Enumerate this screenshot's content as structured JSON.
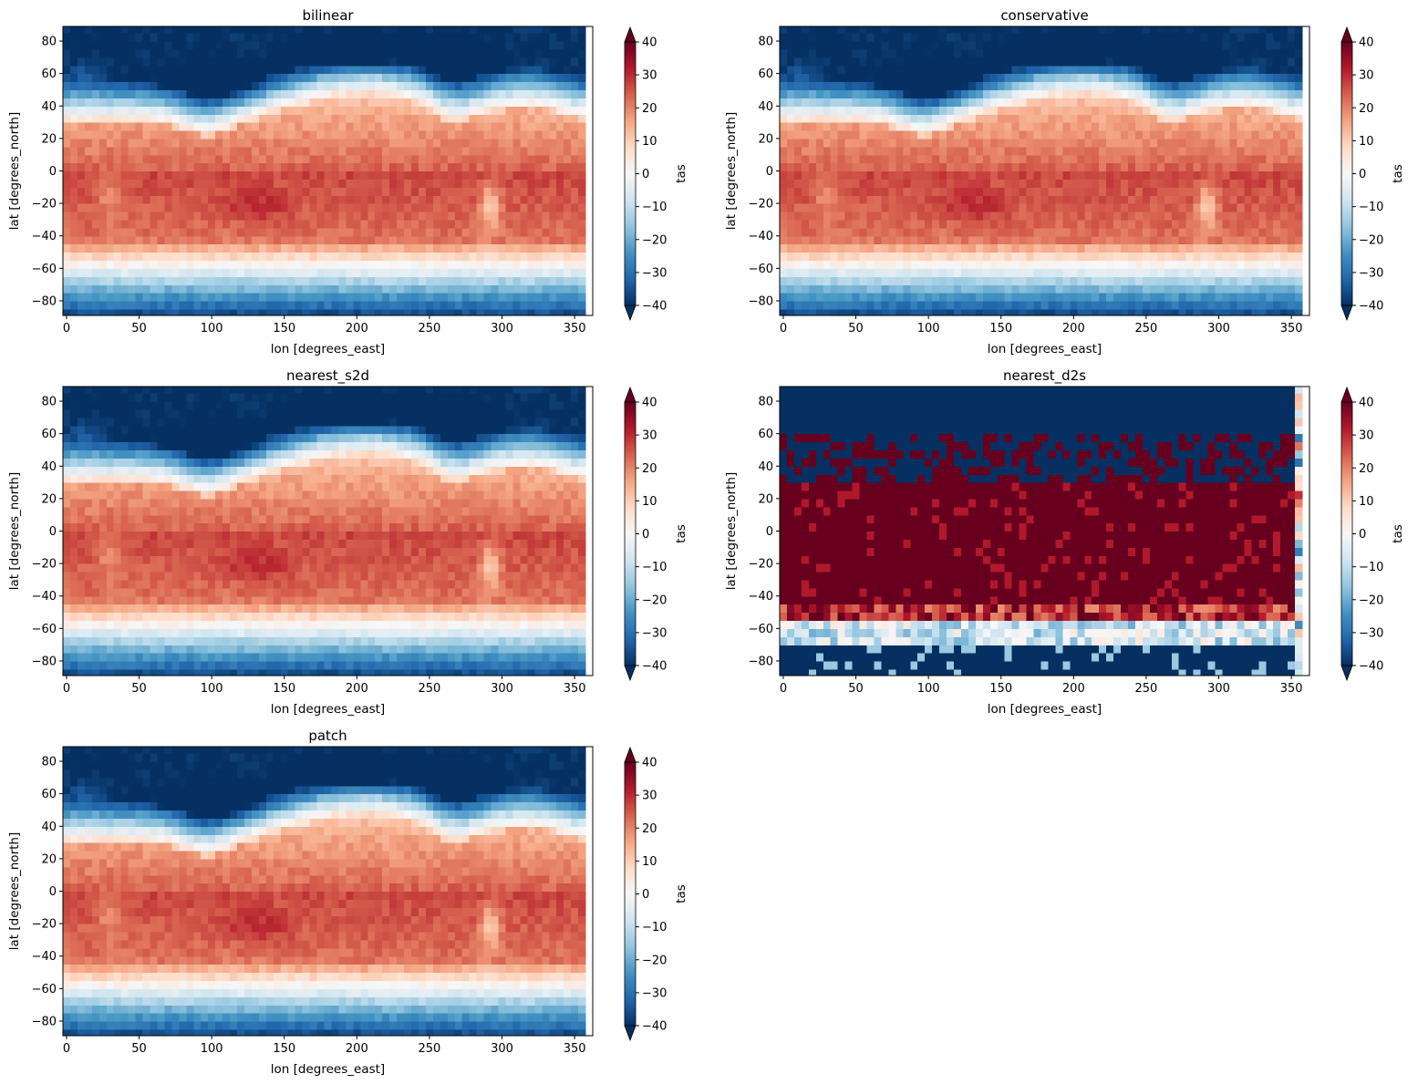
{
  "colorscale": {
    "name": "RdBu_r",
    "stops": [
      "#053061",
      "#2166ac",
      "#4393c3",
      "#92c5de",
      "#d1e5f0",
      "#f7f7f7",
      "#fddbc7",
      "#f4a582",
      "#d6604d",
      "#b2182b",
      "#67001f"
    ]
  },
  "chart_data": [
    {
      "type": "heatmap",
      "title": "bilinear",
      "variant": "smooth",
      "xlabel": "lon [degrees_east]",
      "ylabel": "lat [degrees_north]",
      "xlim": [
        -2.5,
        362.5
      ],
      "ylim": [
        -89,
        89
      ],
      "xticks": [
        0,
        50,
        100,
        150,
        200,
        250,
        300,
        350
      ],
      "yticks": [
        -80,
        -60,
        -40,
        -20,
        0,
        20,
        40,
        60,
        80
      ],
      "colorbar": {
        "label": "tas",
        "range": [
          -40,
          40
        ],
        "ticks": [
          -40,
          -30,
          -20,
          -10,
          0,
          10,
          20,
          30,
          40
        ],
        "extend": "both"
      },
      "grid": {
        "nx": 72,
        "ny": 36,
        "dx_deg": 5,
        "dy_deg": 5
      }
    },
    {
      "type": "heatmap",
      "title": "conservative",
      "variant": "smooth",
      "xlabel": "lon [degrees_east]",
      "ylabel": "lat [degrees_north]",
      "xlim": [
        -2.5,
        362.5
      ],
      "ylim": [
        -89,
        89
      ],
      "xticks": [
        0,
        50,
        100,
        150,
        200,
        250,
        300,
        350
      ],
      "yticks": [
        -80,
        -60,
        -40,
        -20,
        0,
        20,
        40,
        60,
        80
      ],
      "colorbar": {
        "label": "tas",
        "range": [
          -40,
          40
        ],
        "ticks": [
          -40,
          -30,
          -20,
          -10,
          0,
          10,
          20,
          30,
          40
        ],
        "extend": "both"
      },
      "grid": {
        "nx": 72,
        "ny": 36,
        "dx_deg": 5,
        "dy_deg": 5
      }
    },
    {
      "type": "heatmap",
      "title": "nearest_s2d",
      "variant": "smooth",
      "xlabel": "lon [degrees_east]",
      "ylabel": "lat [degrees_north]",
      "xlim": [
        -2.5,
        362.5
      ],
      "ylim": [
        -89,
        89
      ],
      "xticks": [
        0,
        50,
        100,
        150,
        200,
        250,
        300,
        350
      ],
      "yticks": [
        -80,
        -60,
        -40,
        -20,
        0,
        20,
        40,
        60,
        80
      ],
      "colorbar": {
        "label": "tas",
        "range": [
          -40,
          40
        ],
        "ticks": [
          -40,
          -30,
          -20,
          -10,
          0,
          10,
          20,
          30,
          40
        ],
        "extend": "both"
      },
      "grid": {
        "nx": 72,
        "ny": 36,
        "dx_deg": 5,
        "dy_deg": 5
      }
    },
    {
      "type": "heatmap",
      "title": "nearest_d2s",
      "variant": "saturated",
      "xlabel": "lon [degrees_east]",
      "ylabel": "lat [degrees_north]",
      "xlim": [
        -2.5,
        362.5
      ],
      "ylim": [
        -89,
        89
      ],
      "xticks": [
        0,
        50,
        100,
        150,
        200,
        250,
        300,
        350
      ],
      "yticks": [
        -80,
        -60,
        -40,
        -20,
        0,
        20,
        40,
        60,
        80
      ],
      "colorbar": {
        "label": "tas",
        "range": [
          -40,
          40
        ],
        "ticks": [
          -40,
          -30,
          -20,
          -10,
          0,
          10,
          20,
          30,
          40
        ],
        "extend": "both"
      },
      "grid": {
        "nx": 72,
        "ny": 36,
        "dx_deg": 5,
        "dy_deg": 5
      }
    },
    {
      "type": "heatmap",
      "title": "patch",
      "variant": "smooth",
      "xlabel": "lon [degrees_east]",
      "ylabel": "lat [degrees_north]",
      "xlim": [
        -2.5,
        362.5
      ],
      "ylim": [
        -89,
        89
      ],
      "xticks": [
        0,
        50,
        100,
        150,
        200,
        250,
        300,
        350
      ],
      "yticks": [
        -80,
        -60,
        -40,
        -20,
        0,
        20,
        40,
        60,
        80
      ],
      "colorbar": {
        "label": "tas",
        "range": [
          -40,
          40
        ],
        "ticks": [
          -40,
          -30,
          -20,
          -10,
          0,
          10,
          20,
          30,
          40
        ],
        "extend": "both"
      },
      "grid": {
        "nx": 72,
        "ny": 36,
        "dx_deg": 5,
        "dy_deg": 5
      }
    }
  ]
}
